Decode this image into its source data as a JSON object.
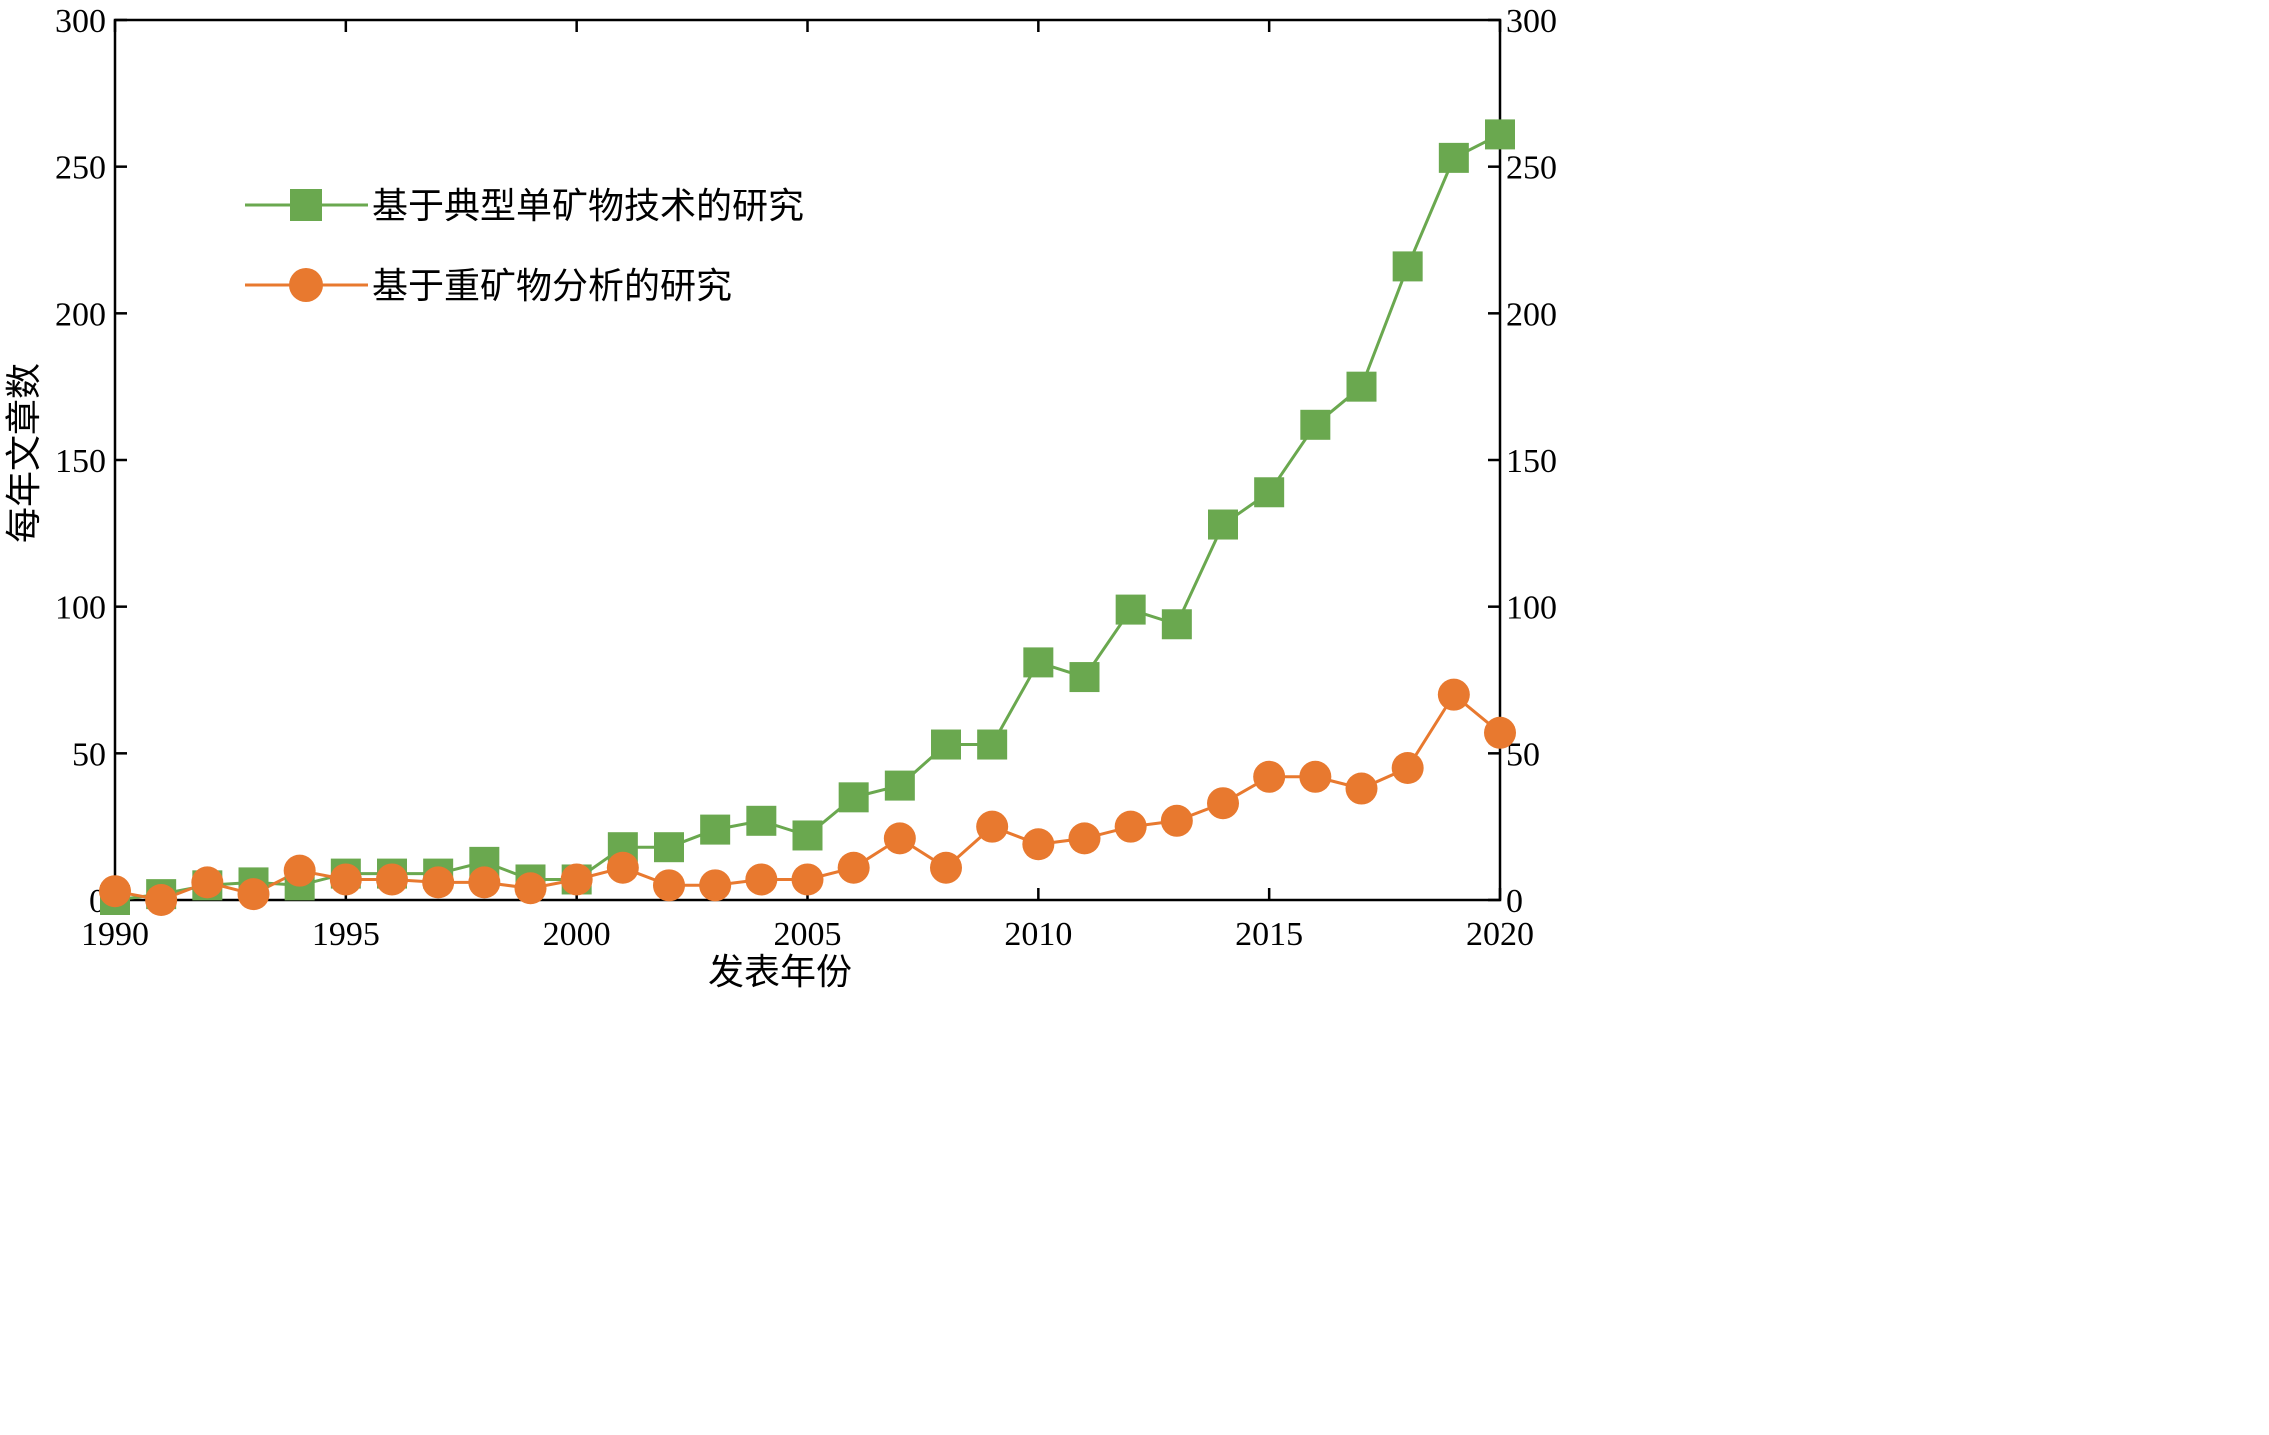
{
  "chart_data": {
    "type": "line",
    "xlabel": "发表年份",
    "ylabel": "每年文章数",
    "xlim": [
      1990,
      2020
    ],
    "ylim": [
      0,
      300
    ],
    "xticks": [
      1990,
      1995,
      2000,
      2005,
      2010,
      2015,
      2020
    ],
    "yticks": [
      0,
      50,
      100,
      150,
      200,
      250,
      300
    ],
    "y2ticks": [
      0,
      50,
      100,
      150,
      200,
      250,
      300
    ],
    "grid": false,
    "legend_position": "upper-left",
    "series": [
      {
        "name": "基于典型单矿物技术的研究",
        "color": "#6aa84f",
        "marker": "square",
        "x": [
          1990,
          1991,
          1992,
          1993,
          1994,
          1995,
          1996,
          1997,
          1998,
          1999,
          2000,
          2001,
          2002,
          2003,
          2004,
          2005,
          2006,
          2007,
          2008,
          2009,
          2010,
          2011,
          2012,
          2013,
          2014,
          2015,
          2016,
          2017,
          2018,
          2019,
          2020
        ],
        "y": [
          0,
          2,
          5,
          6,
          5,
          9,
          9,
          9,
          13,
          7,
          7,
          18,
          18,
          24,
          27,
          22,
          35,
          39,
          53,
          53,
          81,
          76,
          99,
          94,
          128,
          139,
          162,
          175,
          216,
          253,
          261
        ]
      },
      {
        "name": "基于重矿物分析的研究",
        "color": "#e8792f",
        "marker": "circle",
        "x": [
          1990,
          1991,
          1992,
          1993,
          1994,
          1995,
          1996,
          1997,
          1998,
          1999,
          2000,
          2001,
          2002,
          2003,
          2004,
          2005,
          2006,
          2007,
          2008,
          2009,
          2010,
          2011,
          2012,
          2013,
          2014,
          2015,
          2016,
          2017,
          2018,
          2019,
          2020
        ],
        "y": [
          3,
          0,
          6,
          2,
          10,
          7,
          7,
          6,
          6,
          4,
          7,
          11,
          5,
          5,
          7,
          7,
          11,
          21,
          11,
          25,
          19,
          21,
          25,
          27,
          33,
          42,
          42,
          38,
          45,
          70,
          57
        ]
      }
    ]
  }
}
